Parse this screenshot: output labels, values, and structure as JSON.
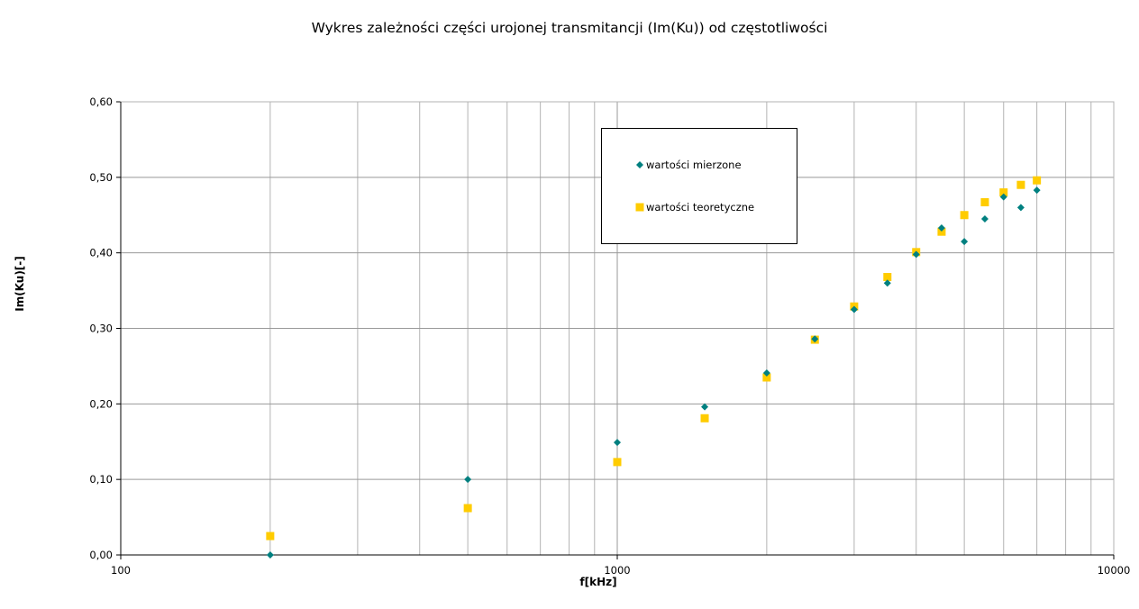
{
  "chart_data": {
    "type": "scatter",
    "title": "Wykres zależności części urojonej transmitancji (Im(Ku)) od częstotliwości",
    "xlabel": "f[kHz]",
    "ylabel": "Im(Ku)[-]",
    "x_scale": "log",
    "xlim": [
      100,
      10000
    ],
    "ylim": [
      0,
      0.6
    ],
    "x_ticks": [
      "100",
      "1000",
      "10000"
    ],
    "y_ticks": [
      "0,00",
      "0,10",
      "0,20",
      "0,30",
      "0,40",
      "0,50",
      "0,60"
    ],
    "grid": true,
    "legend_position": "top-center",
    "series": [
      {
        "name": "wartości mierzone",
        "marker": "diamond",
        "color": "#008080",
        "x": [
          200,
          500,
          1000,
          1500,
          2000,
          2500,
          3000,
          3500,
          4000,
          4500,
          5000,
          5500,
          6000,
          6500,
          7000
        ],
        "y": [
          0.0,
          0.1,
          0.149,
          0.196,
          0.241,
          0.286,
          0.325,
          0.36,
          0.398,
          0.433,
          0.415,
          0.445,
          0.474,
          0.46,
          0.483
        ]
      },
      {
        "name": "wartości teoretyczne",
        "marker": "square",
        "color": "#ffcc00",
        "x": [
          200,
          500,
          1000,
          1500,
          2000,
          2500,
          3000,
          3500,
          4000,
          4500,
          5000,
          5500,
          6000,
          6500,
          7000
        ],
        "y": [
          0.025,
          0.062,
          0.123,
          0.181,
          0.235,
          0.285,
          0.329,
          0.368,
          0.401,
          0.428,
          0.45,
          0.467,
          0.48,
          0.49,
          0.496
        ]
      }
    ]
  }
}
